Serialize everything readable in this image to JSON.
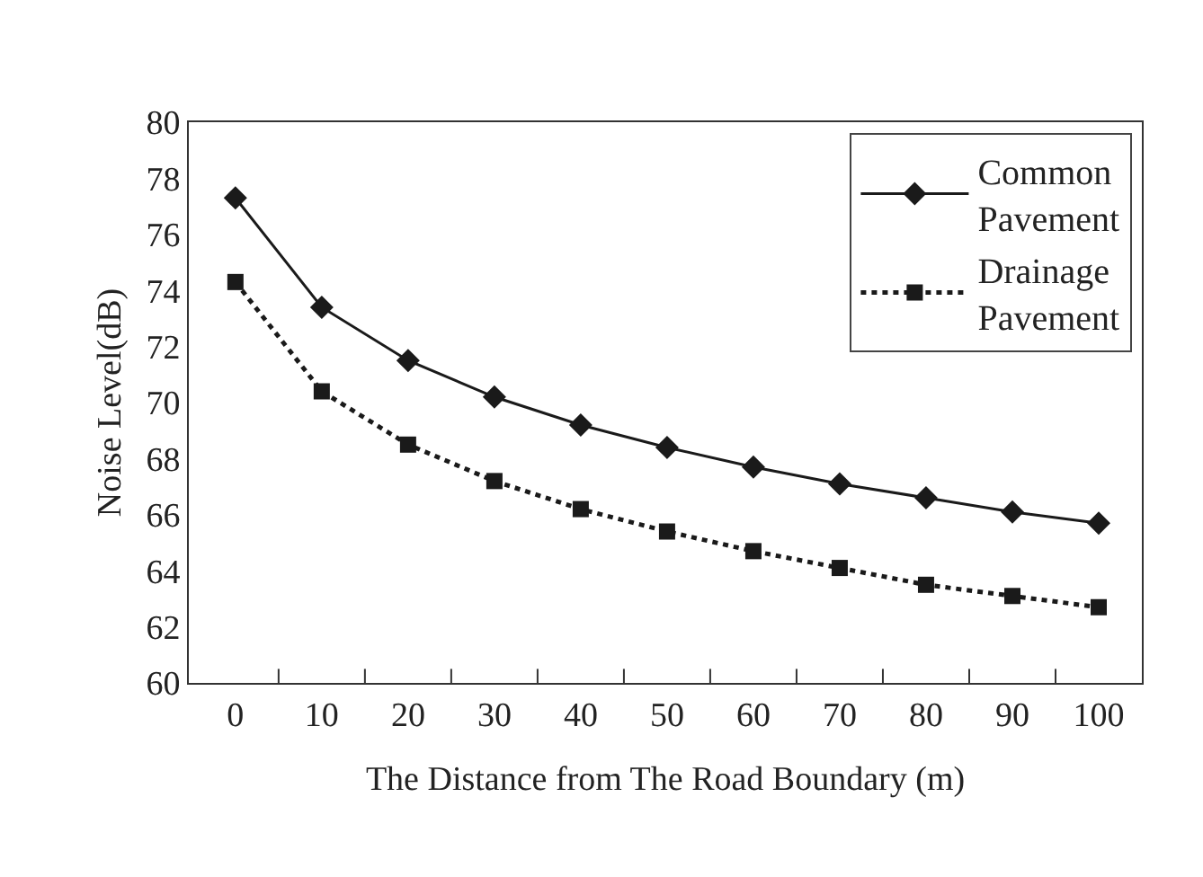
{
  "chart_data": {
    "type": "line",
    "xlabel": "The Distance from The Road Boundary (m)",
    "ylabel": "Noise Level(dB)",
    "categories": [
      "0",
      "10",
      "20",
      "30",
      "40",
      "50",
      "60",
      "70",
      "80",
      "90",
      "100"
    ],
    "series": [
      {
        "name": "Common Pavement",
        "color": "#1a1a1a",
        "marker": "diamond",
        "line_style": "solid",
        "values": [
          77.3,
          73.4,
          71.5,
          70.2,
          69.2,
          68.4,
          67.7,
          67.1,
          66.6,
          66.1,
          65.7
        ]
      },
      {
        "name": "Drainage Pavement",
        "color": "#1a1a1a",
        "marker": "square",
        "line_style": "dotted",
        "values": [
          74.3,
          70.4,
          68.5,
          67.2,
          66.2,
          65.4,
          64.7,
          64.1,
          63.5,
          63.1,
          62.7
        ]
      }
    ],
    "ylim": [
      60,
      80
    ],
    "yticks": [
      60,
      62,
      64,
      66,
      68,
      70,
      72,
      74,
      76,
      78,
      80
    ],
    "legend": "top right"
  }
}
